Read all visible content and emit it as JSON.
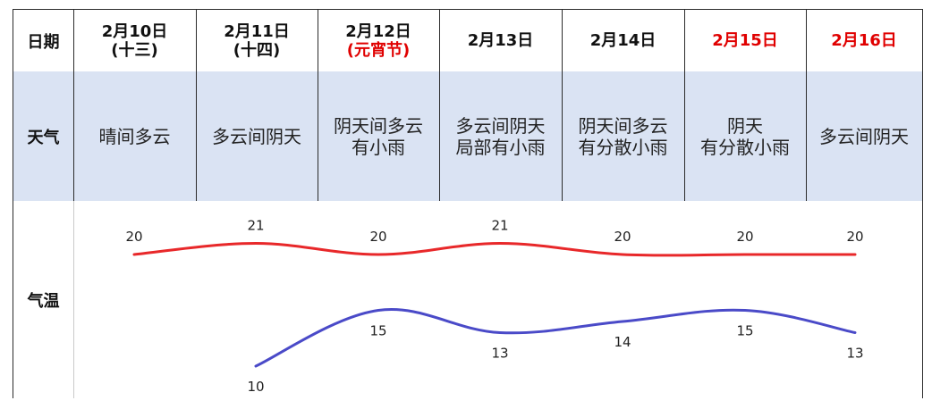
{
  "header_label": "日期",
  "weather_label": "天气",
  "temp_label": "气温",
  "days": [
    {
      "date": "2月10日",
      "sub": "(十三)",
      "date_color": "#111111",
      "sub_color": "#111111",
      "weather": "晴间多云"
    },
    {
      "date": "2月11日",
      "sub": "(十四)",
      "date_color": "#111111",
      "sub_color": "#111111",
      "weather": "多云间阴天"
    },
    {
      "date": "2月12日",
      "sub": "(元宵节)",
      "date_color": "#111111",
      "sub_color": "#e00000",
      "weather": "阴天间多云\n有小雨"
    },
    {
      "date": "2月13日",
      "sub": "",
      "date_color": "#111111",
      "sub_color": "#111111",
      "weather": "多云间阴天\n局部有小雨"
    },
    {
      "date": "2月14日",
      "sub": "",
      "date_color": "#111111",
      "sub_color": "#111111",
      "weather": "阴天间多云\n有分散小雨"
    },
    {
      "date": "2月15日",
      "sub": "",
      "date_color": "#e00000",
      "sub_color": "#e00000",
      "weather": "阴天\n有分散小雨"
    },
    {
      "date": "2月16日",
      "sub": "",
      "date_color": "#e00000",
      "sub_color": "#e00000",
      "weather": "多云间阴天"
    }
  ],
  "colors": {
    "weather_row_bg": "#dae3f3",
    "high_line": "#e8282a",
    "low_line": "#4a4ac8",
    "holiday_red": "#e00000"
  },
  "chart_data": {
    "type": "line",
    "categories": [
      "2月10日",
      "2月11日",
      "2月12日",
      "2月13日",
      "2月14日",
      "2月15日",
      "2月16日"
    ],
    "series": [
      {
        "values": [
          20,
          21,
          20,
          21,
          20,
          20,
          20
        ],
        "color": "#e8282a"
      },
      {
        "values": [
          null,
          10,
          15,
          13,
          14,
          15,
          13
        ],
        "color": "#4a4ac8"
      }
    ],
    "ylim": [
      8,
      24
    ],
    "smooth": true,
    "grid": false,
    "data_labels": true
  }
}
